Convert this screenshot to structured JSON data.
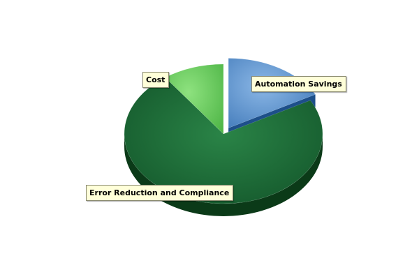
{
  "chart_data": {
    "type": "pie",
    "style": "3d",
    "categories": [
      "Cost",
      "Automation Savings",
      "Error Reduction and Compliance"
    ],
    "values": [
      10,
      17,
      73
    ],
    "exploded": "Automation Savings",
    "colors": [
      "#5cc64f",
      "#4f86c6",
      "#1a6b35"
    ],
    "legend": "none",
    "labels": "callout boxes"
  }
}
